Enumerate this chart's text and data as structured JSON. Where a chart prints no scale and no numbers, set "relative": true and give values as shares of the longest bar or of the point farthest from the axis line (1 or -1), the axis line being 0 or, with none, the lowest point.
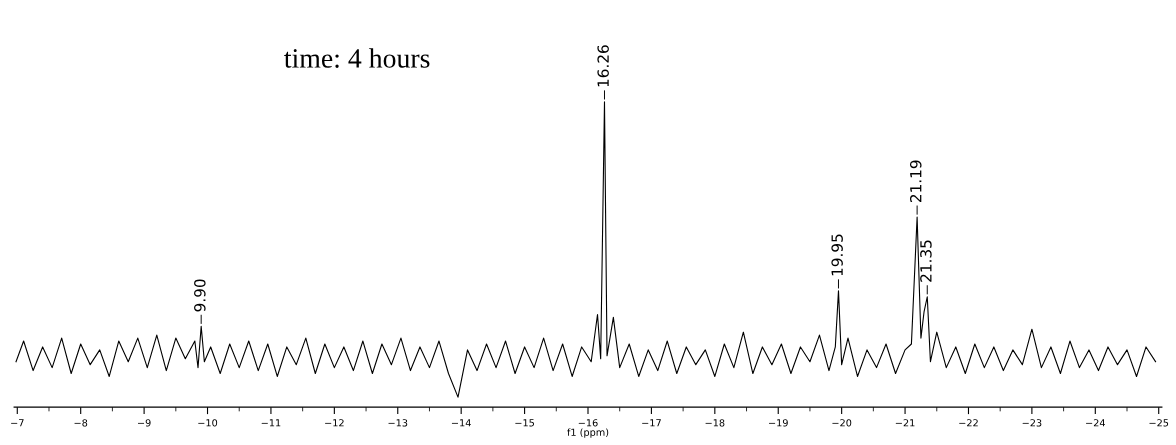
{
  "chart_data": {
    "type": "line",
    "relative": true,
    "xlabel": "f1 (ppm)",
    "tick_labels": "x",
    "color": "#000000",
    "xlim": [
      -6.95,
      -25.05
    ],
    "xticks": [
      -7,
      -8,
      -9,
      -10,
      -11,
      -12,
      -13,
      -14,
      -15,
      -16,
      -17,
      -18,
      -19,
      -20,
      -21,
      -22,
      -23,
      -24,
      -25
    ],
    "x": [
      -6.98,
      -7.1,
      -7.25,
      -7.4,
      -7.55,
      -7.7,
      -7.85,
      -8.0,
      -8.15,
      -8.3,
      -8.45,
      -8.6,
      -8.75,
      -8.9,
      -9.05,
      -9.2,
      -9.35,
      -9.5,
      -9.65,
      -9.8,
      -9.85,
      -9.9,
      -9.95,
      -10.05,
      -10.2,
      -10.35,
      -10.5,
      -10.65,
      -10.8,
      -10.95,
      -11.1,
      -11.25,
      -11.4,
      -11.55,
      -11.7,
      -11.85,
      -12.0,
      -12.15,
      -12.3,
      -12.45,
      -12.6,
      -12.75,
      -12.9,
      -13.05,
      -13.2,
      -13.35,
      -13.5,
      -13.65,
      -13.8,
      -13.95,
      -14.1,
      -14.25,
      -14.4,
      -14.55,
      -14.7,
      -14.85,
      -15.0,
      -15.15,
      -15.3,
      -15.45,
      -15.6,
      -15.75,
      -15.9,
      -16.05,
      -16.15,
      -16.2,
      -16.26,
      -16.3,
      -16.4,
      -16.5,
      -16.65,
      -16.8,
      -16.95,
      -17.1,
      -17.25,
      -17.4,
      -17.55,
      -17.7,
      -17.85,
      -18.0,
      -18.15,
      -18.3,
      -18.45,
      -18.6,
      -18.75,
      -18.9,
      -19.05,
      -19.2,
      -19.35,
      -19.5,
      -19.65,
      -19.8,
      -19.9,
      -19.95,
      -20.0,
      -20.1,
      -20.25,
      -20.4,
      -20.55,
      -20.7,
      -20.85,
      -21.0,
      -21.1,
      -21.19,
      -21.25,
      -21.3,
      -21.35,
      -21.4,
      -21.5,
      -21.65,
      -21.8,
      -21.95,
      -22.1,
      -22.25,
      -22.4,
      -22.55,
      -22.7,
      -22.85,
      -23.0,
      -23.15,
      -23.3,
      -23.45,
      -23.6,
      -23.75,
      -23.9,
      -24.05,
      -24.2,
      -24.35,
      -24.5,
      -24.65,
      -24.8,
      -24.95
    ],
    "values": [
      0.12,
      0.19,
      0.09,
      0.17,
      0.1,
      0.2,
      0.08,
      0.18,
      0.11,
      0.16,
      0.07,
      0.19,
      0.12,
      0.2,
      0.1,
      0.21,
      0.09,
      0.2,
      0.13,
      0.19,
      0.1,
      0.24,
      0.12,
      0.17,
      0.08,
      0.18,
      0.1,
      0.19,
      0.09,
      0.18,
      0.07,
      0.17,
      0.11,
      0.2,
      0.08,
      0.18,
      0.1,
      0.17,
      0.09,
      0.19,
      0.08,
      0.18,
      0.11,
      0.2,
      0.09,
      0.17,
      0.1,
      0.19,
      0.08,
      0.0,
      0.16,
      0.09,
      0.18,
      0.1,
      0.19,
      0.08,
      0.17,
      0.1,
      0.2,
      0.09,
      0.18,
      0.07,
      0.17,
      0.12,
      0.28,
      0.13,
      1,
      0.14,
      0.27,
      0.1,
      0.18,
      0.07,
      0.16,
      0.09,
      0.19,
      0.08,
      0.17,
      0.11,
      0.16,
      0.07,
      0.18,
      0.1,
      0.22,
      0.08,
      0.17,
      0.11,
      0.18,
      0.08,
      0.17,
      0.12,
      0.21,
      0.09,
      0.17,
      0.36,
      0.11,
      0.2,
      0.07,
      0.16,
      0.1,
      0.18,
      0.08,
      0.16,
      0.18,
      0.61,
      0.2,
      0.29,
      0.34,
      0.12,
      0.22,
      0.1,
      0.17,
      0.08,
      0.18,
      0.1,
      0.17,
      0.09,
      0.16,
      0.11,
      0.23,
      0.1,
      0.17,
      0.08,
      0.19,
      0.1,
      0.16,
      0.09,
      0.17,
      0.11,
      0.16,
      0.07,
      0.17,
      0.12
    ],
    "annotations": [
      "time: 4 hours",
      {
        "text": "9.90",
        "x": -9.9,
        "y": 0.24
      },
      {
        "text": "16.26",
        "x": -16.26,
        "y": 1
      },
      {
        "text": "19.95",
        "x": -19.95,
        "y": 0.36
      },
      {
        "text": "21.19",
        "x": -21.19,
        "y": 0.61
      },
      {
        "text": "21.35",
        "x": -21.35,
        "y": 0.34
      }
    ]
  }
}
